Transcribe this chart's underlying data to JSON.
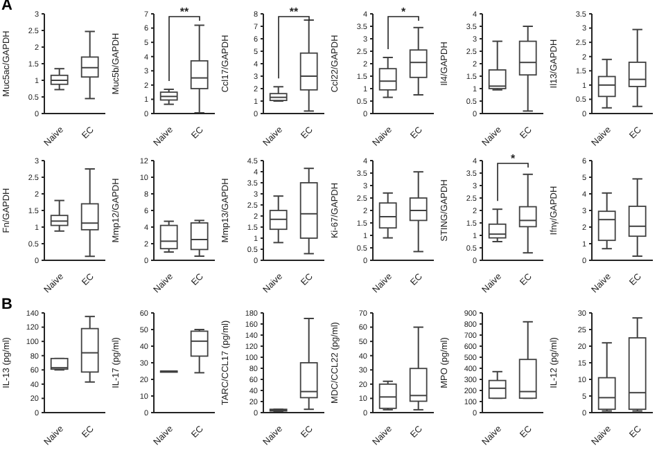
{
  "chart_data": [
    {
      "type": "box",
      "title": "A",
      "ylabel": "Muc5ac/GAPDH",
      "categories": [
        "Naive",
        "EC"
      ],
      "ylim": [
        0,
        3
      ],
      "yticks": [
        0,
        0.5,
        1,
        1.5,
        2,
        2.5,
        3
      ],
      "series": [
        {
          "color": "#404040",
          "boxes": [
            {
              "low": 0.72,
              "q1": 0.88,
              "median": 1.0,
              "q3": 1.15,
              "high": 1.35
            },
            {
              "low": 0.45,
              "q1": 1.1,
              "median": 1.38,
              "q3": 1.7,
              "high": 2.47
            }
          ]
        }
      ]
    },
    {
      "type": "box",
      "ylabel": "Muc5b/GAPDH",
      "categories": [
        "Naive",
        "EC"
      ],
      "ylim": [
        0,
        7
      ],
      "yticks": [
        0,
        1,
        2,
        3,
        4,
        5,
        6,
        7
      ],
      "annotations": [
        "**"
      ],
      "series": [
        {
          "color": "#404040",
          "boxes": [
            {
              "low": 0.65,
              "q1": 0.95,
              "median": 1.2,
              "q3": 1.5,
              "high": 1.7
            },
            {
              "low": 0.05,
              "q1": 1.75,
              "median": 2.5,
              "q3": 3.7,
              "high": 6.2
            }
          ]
        }
      ]
    },
    {
      "type": "box",
      "ylabel": "Ccl17/GAPDH",
      "categories": [
        "Naive",
        "EC"
      ],
      "ylim": [
        0,
        8
      ],
      "yticks": [
        0,
        1,
        2,
        3,
        4,
        5,
        6,
        7,
        8
      ],
      "annotations": [
        "**"
      ],
      "series": [
        {
          "color": "#404040",
          "boxes": [
            {
              "low": 1.0,
              "q1": 1.05,
              "median": 1.3,
              "q3": 1.6,
              "high": 2.15
            },
            {
              "low": 0.2,
              "q1": 1.9,
              "median": 3.0,
              "q3": 4.85,
              "high": 7.5
            }
          ]
        }
      ]
    },
    {
      "type": "box",
      "ylabel": "Ccl22/GAPDH",
      "categories": [
        "Naive",
        "EC"
      ],
      "ylim": [
        0,
        4
      ],
      "yticks": [
        0,
        0.5,
        1,
        1.5,
        2,
        2.5,
        3,
        3.5,
        4
      ],
      "annotations": [
        "*"
      ],
      "series": [
        {
          "color": "#404040",
          "boxes": [
            {
              "low": 0.65,
              "q1": 0.95,
              "median": 1.3,
              "q3": 1.8,
              "high": 2.25
            },
            {
              "low": 0.75,
              "q1": 1.45,
              "median": 2.05,
              "q3": 2.55,
              "high": 3.45
            }
          ]
        }
      ]
    },
    {
      "type": "box",
      "ylabel": "Il4/GAPDH",
      "categories": [
        "Naive",
        "EC"
      ],
      "ylim": [
        0,
        4
      ],
      "yticks": [
        0,
        0.5,
        1,
        1.5,
        2,
        2.5,
        3,
        3.5,
        4
      ],
      "series": [
        {
          "color": "#404040",
          "boxes": [
            {
              "low": 0.95,
              "q1": 1.0,
              "median": 1.1,
              "q3": 1.75,
              "high": 2.9
            },
            {
              "low": 0.1,
              "q1": 1.55,
              "median": 2.05,
              "q3": 2.9,
              "high": 3.5
            }
          ]
        }
      ]
    },
    {
      "type": "box",
      "ylabel": "Il13/GAPDH",
      "categories": [
        "Naive",
        "EC"
      ],
      "ylim": [
        0,
        3.5
      ],
      "yticks": [
        0,
        0.5,
        1,
        1.5,
        2,
        2.5,
        3,
        3.5
      ],
      "series": [
        {
          "color": "#404040",
          "boxes": [
            {
              "low": 0.2,
              "q1": 0.6,
              "median": 1.0,
              "q3": 1.3,
              "high": 1.9
            },
            {
              "low": 0.25,
              "q1": 0.95,
              "median": 1.2,
              "q3": 1.8,
              "high": 2.95
            }
          ]
        }
      ]
    },
    {
      "type": "box",
      "ylabel": "Fn/GAPDH",
      "categories": [
        "Naive",
        "EC"
      ],
      "ylim": [
        0,
        3
      ],
      "yticks": [
        0,
        0.5,
        1,
        1.5,
        2,
        2.5,
        3
      ],
      "series": [
        {
          "color": "#404040",
          "boxes": [
            {
              "low": 0.88,
              "q1": 1.05,
              "median": 1.18,
              "q3": 1.35,
              "high": 1.8
            },
            {
              "low": 0.12,
              "q1": 0.92,
              "median": 1.12,
              "q3": 1.7,
              "high": 2.75
            }
          ]
        }
      ]
    },
    {
      "type": "box",
      "ylabel": "Mmp12/GAPDH",
      "categories": [
        "Naive",
        "EC"
      ],
      "ylim": [
        0,
        12
      ],
      "yticks": [
        0,
        2,
        4,
        6,
        8,
        10,
        12
      ],
      "series": [
        {
          "color": "#404040",
          "boxes": [
            {
              "low": 1.0,
              "q1": 1.4,
              "median": 2.3,
              "q3": 4.2,
              "high": 4.7
            },
            {
              "low": 0.5,
              "q1": 1.3,
              "median": 2.5,
              "q3": 4.5,
              "high": 4.8
            }
          ]
        }
      ]
    },
    {
      "type": "box",
      "ylabel": "Mmp13/GAPDH",
      "categories": [
        "Naive",
        "EC"
      ],
      "ylim": [
        0,
        4.5
      ],
      "yticks": [
        0,
        0.5,
        1,
        1.5,
        2,
        2.5,
        3,
        3.5,
        4,
        4.5
      ],
      "series": [
        {
          "color": "#404040",
          "boxes": [
            {
              "low": 0.8,
              "q1": 1.4,
              "median": 1.85,
              "q3": 2.25,
              "high": 2.9
            },
            {
              "low": 0.3,
              "q1": 1.0,
              "median": 2.1,
              "q3": 3.5,
              "high": 4.15
            }
          ]
        }
      ]
    },
    {
      "type": "box",
      "ylabel": "Ki-67/GAPDH",
      "categories": [
        "Naive",
        "EC"
      ],
      "ylim": [
        0,
        4
      ],
      "yticks": [
        0,
        0.5,
        1,
        1.5,
        2,
        2.5,
        3,
        3.5,
        4
      ],
      "series": [
        {
          "color": "#404040",
          "boxes": [
            {
              "low": 0.9,
              "q1": 1.3,
              "median": 1.75,
              "q3": 2.3,
              "high": 2.7
            },
            {
              "low": 0.35,
              "q1": 1.6,
              "median": 2.0,
              "q3": 2.5,
              "high": 3.55
            }
          ]
        }
      ]
    },
    {
      "type": "box",
      "ylabel": "STING/GAPDH",
      "categories": [
        "Naive",
        "EC"
      ],
      "ylim": [
        0,
        4
      ],
      "yticks": [
        0,
        0.5,
        1,
        1.5,
        2,
        2.5,
        3,
        3.5,
        4
      ],
      "annotations": [
        "*"
      ],
      "series": [
        {
          "color": "#404040",
          "boxes": [
            {
              "low": 0.75,
              "q1": 0.9,
              "median": 1.05,
              "q3": 1.45,
              "high": 2.05
            },
            {
              "low": 0.3,
              "q1": 1.35,
              "median": 1.6,
              "q3": 2.15,
              "high": 3.45
            }
          ]
        }
      ]
    },
    {
      "type": "box",
      "ylabel": "Ifnγ/GAPDH",
      "categories": [
        "Naive",
        "EC"
      ],
      "ylim": [
        0,
        6
      ],
      "yticks": [
        0,
        1,
        2,
        3,
        4,
        5,
        6
      ],
      "series": [
        {
          "color": "#404040",
          "boxes": [
            {
              "low": 0.7,
              "q1": 1.2,
              "median": 2.45,
              "q3": 2.95,
              "high": 4.05
            },
            {
              "low": 0.25,
              "q1": 1.45,
              "median": 2.05,
              "q3": 3.25,
              "high": 4.9
            }
          ]
        }
      ]
    },
    {
      "type": "box",
      "title": "B",
      "ylabel": "IL-13 (pg/ml)",
      "categories": [
        "Naive",
        "EC"
      ],
      "ylim": [
        0,
        140
      ],
      "yticks": [
        0,
        20,
        40,
        60,
        80,
        100,
        120,
        140
      ],
      "series": [
        {
          "color": "#404040",
          "boxes": [
            {
              "low": 60,
              "q1": 61,
              "median": 63,
              "q3": 76,
              "high": 76
            },
            {
              "low": 43,
              "q1": 57,
              "median": 84,
              "q3": 118,
              "high": 135
            }
          ]
        }
      ]
    },
    {
      "type": "box",
      "ylabel": "IL-17 (pg/ml)",
      "categories": [
        "Naive",
        "EC"
      ],
      "ylim": [
        0,
        60
      ],
      "yticks": [
        0,
        10,
        20,
        30,
        40,
        50,
        60
      ],
      "series": [
        {
          "color": "#404040",
          "boxes": [
            {
              "low": 25,
              "q1": 25,
              "median": 25,
              "q3": 25,
              "high": 25
            },
            {
              "low": 24,
              "q1": 34,
              "median": 43,
              "q3": 49,
              "high": 50
            }
          ]
        }
      ]
    },
    {
      "type": "box",
      "ylabel": "TARC/CCL17 (pg/ml)",
      "categories": [
        "Naive",
        "EC"
      ],
      "ylim": [
        0,
        180
      ],
      "yticks": [
        0,
        20,
        40,
        60,
        80,
        100,
        120,
        140,
        160,
        180
      ],
      "series": [
        {
          "color": "#404040",
          "boxes": [
            {
              "low": 2,
              "q1": 3,
              "median": 4,
              "q3": 6,
              "high": 6
            },
            {
              "low": 6,
              "q1": 27,
              "median": 38,
              "q3": 90,
              "high": 170
            }
          ]
        }
      ]
    },
    {
      "type": "box",
      "ylabel": "MDC/CCL22 (pg/ml)",
      "categories": [
        "Naive",
        "EC"
      ],
      "ylim": [
        0,
        70
      ],
      "yticks": [
        0,
        10,
        20,
        30,
        40,
        50,
        60,
        70
      ],
      "series": [
        {
          "color": "#404040",
          "boxes": [
            {
              "low": 2,
              "q1": 3,
              "median": 11,
              "q3": 20,
              "high": 22
            },
            {
              "low": 2,
              "q1": 8,
              "median": 12,
              "q3": 31,
              "high": 60
            }
          ]
        }
      ]
    },
    {
      "type": "box",
      "ylabel": "MPO (pg/ml)",
      "categories": [
        "Naive",
        "EC"
      ],
      "ylim": [
        0,
        900
      ],
      "yticks": [
        0,
        100,
        200,
        300,
        400,
        500,
        600,
        700,
        800,
        900
      ],
      "series": [
        {
          "color": "#404040",
          "boxes": [
            {
              "low": 130,
              "q1": 130,
              "median": 220,
              "q3": 290,
              "high": 370
            },
            {
              "low": 130,
              "q1": 130,
              "median": 190,
              "q3": 480,
              "high": 820
            }
          ]
        }
      ]
    },
    {
      "type": "box",
      "ylabel": "IL-12 (pg/ml)",
      "categories": [
        "Naive",
        "EC"
      ],
      "ylim": [
        0,
        30
      ],
      "yticks": [
        0,
        5,
        10,
        15,
        20,
        25,
        30
      ],
      "series": [
        {
          "color": "#404040",
          "boxes": [
            {
              "low": 0.5,
              "q1": 1,
              "median": 4.5,
              "q3": 10.5,
              "high": 21
            },
            {
              "low": 0.5,
              "q1": 1,
              "median": 6,
              "q3": 22.5,
              "high": 28.5
            }
          ]
        }
      ]
    }
  ]
}
